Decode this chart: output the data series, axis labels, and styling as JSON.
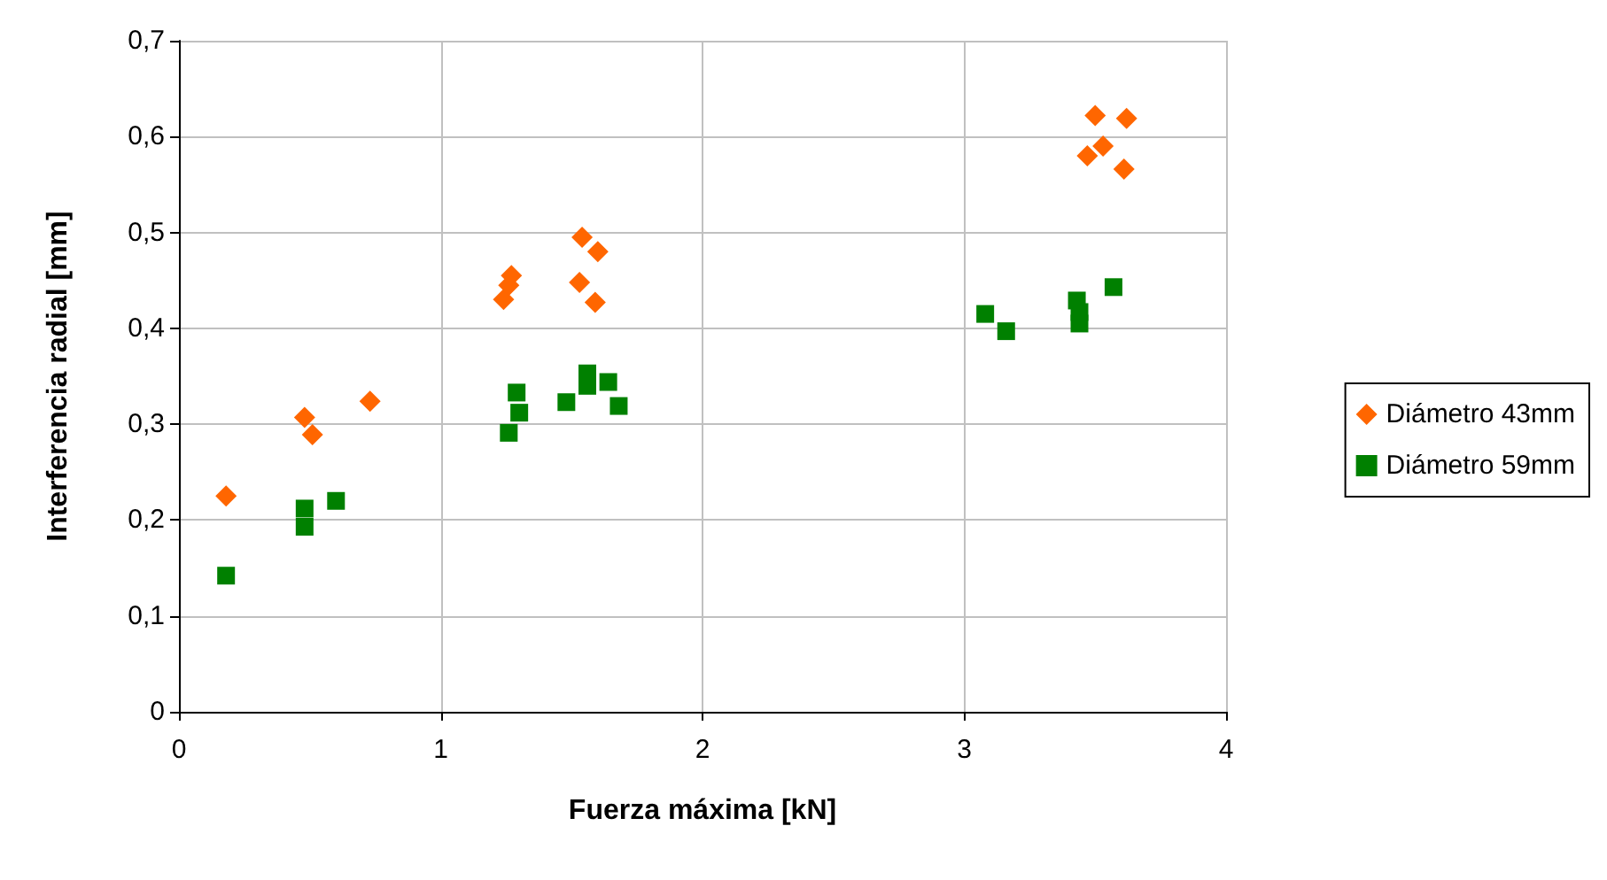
{
  "chart_data": {
    "type": "scatter",
    "xlabel": "Fuerza máxima [kN]",
    "ylabel": "Interferencia radial [mm]",
    "xlim": [
      0,
      4
    ],
    "xticks": [
      0,
      1,
      2,
      3,
      4
    ],
    "ylim": [
      0,
      0.7
    ],
    "yticks": [
      {
        "value": 0,
        "label": "0"
      },
      {
        "value": 0.1,
        "label": "0,1"
      },
      {
        "value": 0.2,
        "label": "0,2"
      },
      {
        "value": 0.3,
        "label": "0,3"
      },
      {
        "value": 0.4,
        "label": "0,4"
      },
      {
        "value": 0.5,
        "label": "0,5"
      },
      {
        "value": 0.6,
        "label": "0,6"
      },
      {
        "value": 0.7,
        "label": "0,7"
      }
    ],
    "grid": true,
    "legend": "right",
    "series": [
      {
        "name": "Diámetro 43mm",
        "color": "#ff6600",
        "marker": "diamond",
        "x": [
          0.18,
          0.48,
          0.51,
          0.73,
          1.24,
          1.26,
          1.27,
          1.54,
          1.6,
          1.53,
          1.59,
          3.5,
          3.62,
          3.47,
          3.53,
          3.61
        ],
        "values": [
          0.225,
          0.307,
          0.289,
          0.324,
          0.43,
          0.445,
          0.455,
          0.495,
          0.48,
          0.448,
          0.427,
          0.622,
          0.619,
          0.58,
          0.59,
          0.566
        ]
      },
      {
        "name": "Diámetro 59mm",
        "color": "#008000",
        "marker": "square",
        "x": [
          0.18,
          0.48,
          0.48,
          0.6,
          1.26,
          1.29,
          1.3,
          1.48,
          1.56,
          1.56,
          1.64,
          1.68,
          3.08,
          3.16,
          3.43,
          3.44,
          3.44,
          3.57
        ],
        "values": [
          0.142,
          0.193,
          0.212,
          0.22,
          0.291,
          0.333,
          0.312,
          0.323,
          0.353,
          0.34,
          0.344,
          0.319,
          0.415,
          0.397,
          0.429,
          0.417,
          0.405,
          0.443
        ]
      }
    ]
  }
}
